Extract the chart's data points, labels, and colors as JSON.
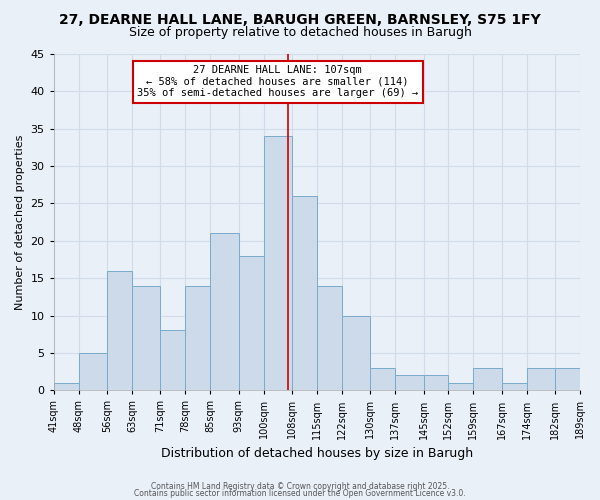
{
  "title": "27, DEARNE HALL LANE, BARUGH GREEN, BARNSLEY, S75 1FY",
  "subtitle": "Size of property relative to detached houses in Barugh",
  "xlabel": "Distribution of detached houses by size in Barugh",
  "ylabel": "Number of detached properties",
  "bins": [
    41,
    48,
    56,
    63,
    71,
    78,
    85,
    93,
    100,
    108,
    115,
    122,
    130,
    137,
    145,
    152,
    159,
    167,
    174,
    182,
    189
  ],
  "counts": [
    1,
    5,
    16,
    14,
    8,
    14,
    21,
    18,
    34,
    26,
    14,
    10,
    3,
    2,
    2,
    1,
    3,
    1,
    3,
    3
  ],
  "bar_color": "#ccdaea",
  "bar_edge_color": "#7aabcc",
  "vline_color": "#cc0000",
  "vline_x": 107,
  "ylim": [
    0,
    45
  ],
  "yticks": [
    0,
    5,
    10,
    15,
    20,
    25,
    30,
    35,
    40,
    45
  ],
  "tick_labels": [
    "41sqm",
    "48sqm",
    "56sqm",
    "63sqm",
    "71sqm",
    "78sqm",
    "85sqm",
    "93sqm",
    "100sqm",
    "108sqm",
    "115sqm",
    "122sqm",
    "130sqm",
    "137sqm",
    "145sqm",
    "152sqm",
    "159sqm",
    "167sqm",
    "174sqm",
    "182sqm",
    "189sqm"
  ],
  "annotation_title": "27 DEARNE HALL LANE: 107sqm",
  "annotation_line1": "← 58% of detached houses are smaller (114)",
  "annotation_line2": "35% of semi-detached houses are larger (69) →",
  "box_edge_color": "#cc0000",
  "box_face_color": "#ffffff",
  "grid_color": "#d0dce8",
  "bg_color": "#eaf0f8",
  "plot_bg_color": "#eaf0f8",
  "footer1": "Contains HM Land Registry data © Crown copyright and database right 2025.",
  "footer2": "Contains public sector information licensed under the Open Government Licence v3.0."
}
